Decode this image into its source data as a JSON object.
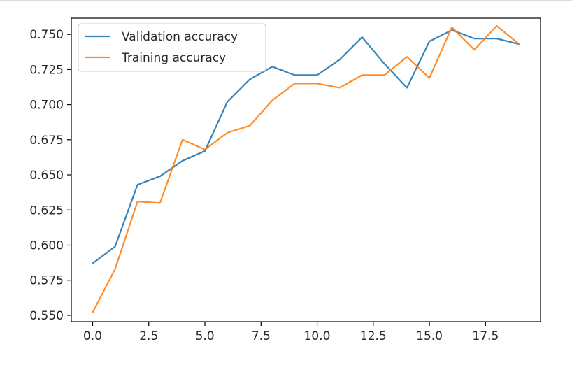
{
  "chart_data": {
    "type": "line",
    "title": "",
    "xlabel": "",
    "ylabel": "",
    "x": [
      0,
      1,
      2,
      3,
      4,
      5,
      6,
      7,
      8,
      9,
      10,
      11,
      12,
      13,
      14,
      15,
      16,
      17,
      18,
      19
    ],
    "xlim": [
      -0.95,
      19.95
    ],
    "ylim": [
      0.5455,
      0.7615
    ],
    "xticks": [
      0.0,
      2.5,
      5.0,
      7.5,
      10.0,
      12.5,
      15.0,
      17.5
    ],
    "xtick_labels": [
      "0.0",
      "2.5",
      "5.0",
      "7.5",
      "10.0",
      "12.5",
      "15.0",
      "17.5"
    ],
    "yticks": [
      0.55,
      0.575,
      0.6,
      0.625,
      0.65,
      0.675,
      0.7,
      0.725,
      0.75
    ],
    "ytick_labels": [
      "0.550",
      "0.575",
      "0.600",
      "0.625",
      "0.650",
      "0.675",
      "0.700",
      "0.725",
      "0.750"
    ],
    "grid": false,
    "legend_position": "top-left",
    "series": [
      {
        "name": "Validation accuracy",
        "color": "#1f77b4",
        "values": [
          0.587,
          0.599,
          0.643,
          0.649,
          0.66,
          0.667,
          0.702,
          0.718,
          0.727,
          0.721,
          0.721,
          0.732,
          0.748,
          0.729,
          0.712,
          0.745,
          0.753,
          0.747,
          0.747,
          0.743
        ]
      },
      {
        "name": "Training accuracy",
        "color": "#ff7f0e",
        "values": [
          0.552,
          0.583,
          0.631,
          0.63,
          0.675,
          0.668,
          0.68,
          0.685,
          0.703,
          0.715,
          0.715,
          0.712,
          0.721,
          0.721,
          0.734,
          0.719,
          0.755,
          0.739,
          0.756,
          0.743
        ]
      }
    ]
  }
}
